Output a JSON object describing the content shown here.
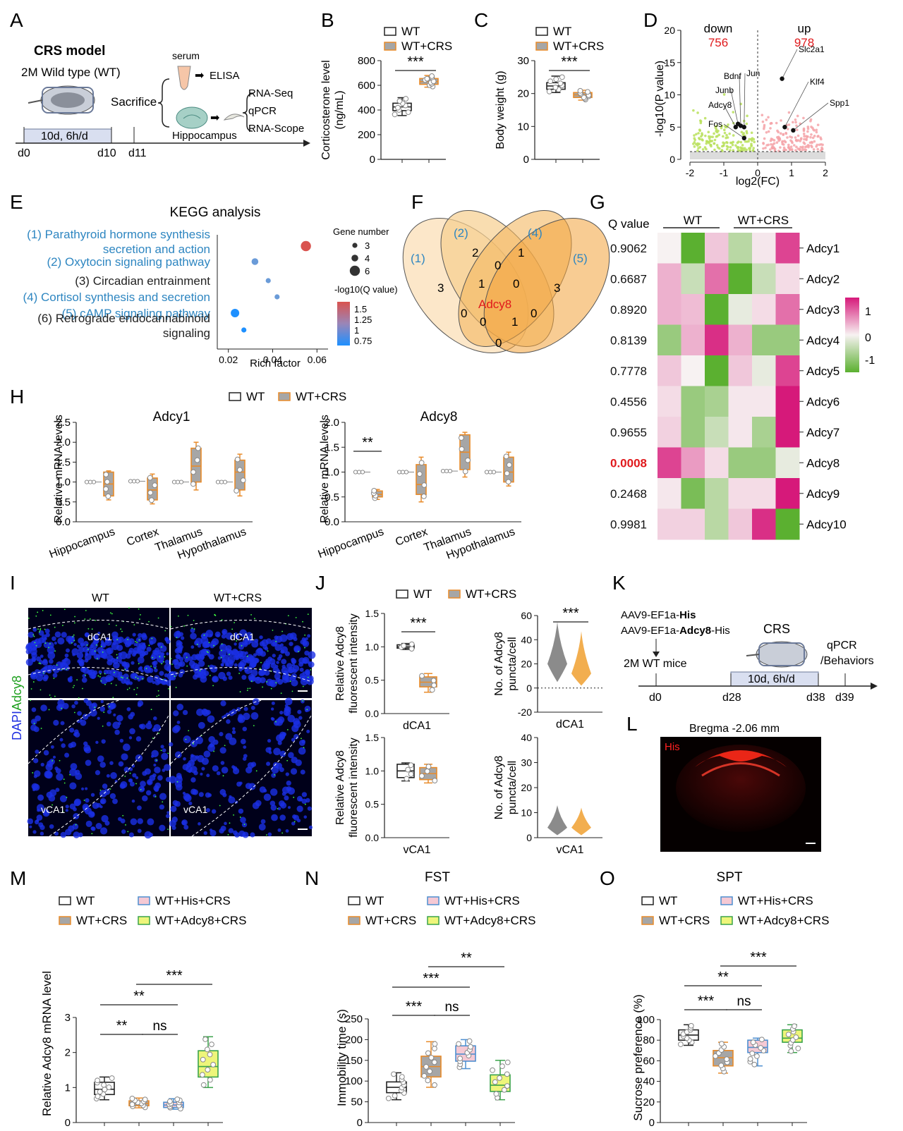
{
  "colors": {
    "wt": "#ffffff",
    "crs": "#a6a6a6",
    "crs_edge": "#e88b2a",
    "his": "#f5c9d4",
    "his_edge": "#4e8fd0",
    "adcy8": "#eef57a",
    "adcy8_edge": "#3aa34a",
    "up": "#f4a3a8",
    "down": "#b8e05a",
    "sig": "#e0191c",
    "blue_text": "#2e86c1",
    "hm_high": "#d6197a",
    "hm_mid": "#f7f2f2",
    "hm_low": "#5bb030",
    "orange": "#f0a030",
    "venn": "#fbe3bf"
  },
  "panel_letters": [
    "A",
    "B",
    "C",
    "D",
    "E",
    "F",
    "G",
    "H",
    "I",
    "J",
    "K",
    "L",
    "M",
    "N",
    "O"
  ],
  "A": {
    "title": "CRS model",
    "sub": "2M Wild type (WT)",
    "sacrifice": "Sacrifice",
    "serum": "serum",
    "elisa": "ELISA",
    "hippocampus": "Hippocampus",
    "assays": [
      "RNA-Seq",
      "qPCR",
      "RNA-Scope"
    ],
    "period": "10d, 6h/d",
    "days": [
      "d0",
      "d10",
      "d11"
    ]
  },
  "B": {
    "chart_data": {
      "type": "box",
      "ylabel": "Corticosterone level",
      "ylabel2": "(ng/mL)",
      "ylim": [
        0,
        800
      ],
      "ticks": [
        "0",
        "200",
        "400",
        "600",
        "800"
      ],
      "legend": [
        "WT",
        "WT+CRS"
      ],
      "sig": "***",
      "groups": [
        {
          "name": "WT",
          "median": 425,
          "q1": 395,
          "q3": 455,
          "min": 355,
          "max": 500
        },
        {
          "name": "WT+CRS",
          "median": 630,
          "q1": 608,
          "q3": 655,
          "min": 585,
          "max": 680
        }
      ]
    }
  },
  "C": {
    "chart_data": {
      "type": "box",
      "ylabel": "Body weight (g)",
      "ylim": [
        0,
        30
      ],
      "ticks": [
        "0",
        "10",
        "20",
        "30"
      ],
      "legend": [
        "WT",
        "WT+CRS"
      ],
      "sig": "***",
      "groups": [
        {
          "name": "WT",
          "median": 22.3,
          "q1": 21.3,
          "q3": 23.3,
          "min": 20.3,
          "max": 25.3
        },
        {
          "name": "WT+CRS",
          "median": 19.6,
          "q1": 18.8,
          "q3": 20.3,
          "min": 18.0,
          "max": 21.0
        }
      ]
    }
  },
  "D": {
    "chart_data": {
      "type": "scatter",
      "xlabel": "log2(FC)",
      "ylabel": "-log10(P value)",
      "xlim": [
        -2,
        2
      ],
      "ylim": [
        0,
        20
      ],
      "xticks": [
        "-2",
        "-1",
        "0",
        "1",
        "2"
      ],
      "yticks": [
        "0",
        "5",
        "10",
        "15",
        "20"
      ],
      "down_label": "down",
      "down_count": "756",
      "up_label": "up",
      "up_count": "978",
      "genes": [
        {
          "name": "Slc2a1",
          "x": 0.72,
          "y": 12.5
        },
        {
          "name": "Klf4",
          "x": 0.8,
          "y": 5.0
        },
        {
          "name": "Spp1",
          "x": 1.05,
          "y": 4.5
        },
        {
          "name": "Jun",
          "x": -0.4,
          "y": 5.0
        },
        {
          "name": "Bdnf",
          "x": -0.5,
          "y": 5.2
        },
        {
          "name": "Junb",
          "x": -0.58,
          "y": 5.5
        },
        {
          "name": "Adcy8",
          "x": -0.65,
          "y": 5.0
        },
        {
          "name": "Fos",
          "x": -0.4,
          "y": 3.3
        }
      ]
    }
  },
  "E": {
    "title": "KEGG analysis",
    "xlabel": "Rich factor",
    "xticks": [
      "0.02",
      "0.04",
      "0.06"
    ],
    "size_legend_title": "Gene number",
    "size_legend": [
      "3",
      "4",
      "6"
    ],
    "color_legend_title": "-log10(Q value)",
    "color_legend": [
      "1.5",
      "1.25",
      "1",
      "0.75"
    ],
    "chart_data": {
      "type": "scatter",
      "xlim": [
        0.015,
        0.065
      ],
      "pathways": [
        {
          "label": "(1) Parathyroid hormone synthesis",
          "label2": "secretion and action",
          "rich": 0.055,
          "genes": 6,
          "q": 1.5,
          "highlight": true
        },
        {
          "label": "(2) Oxytocin signaling pathway",
          "rich": 0.032,
          "genes": 4,
          "q": 1.05,
          "highlight": true
        },
        {
          "label": "(3) Circadian entrainment",
          "rich": 0.038,
          "genes": 3,
          "q": 1.0,
          "highlight": false
        },
        {
          "label": "(4) Cortisol synthesis and secretion",
          "rich": 0.042,
          "genes": 3,
          "q": 0.95,
          "highlight": true
        },
        {
          "label": "(5) cAMP signaling pathway",
          "rich": 0.023,
          "genes": 5,
          "q": 0.75,
          "highlight": true
        },
        {
          "label": "(6) Retrograde endocannabinoid",
          "label2": "signaling",
          "rich": 0.027,
          "genes": 3,
          "q": 0.8,
          "highlight": false
        }
      ]
    }
  },
  "F": {
    "set_labels": [
      "(1)",
      "(2)",
      "(4)",
      "(5)"
    ],
    "counts": [
      "3",
      "2",
      "1",
      "3",
      "0",
      "1",
      "0",
      "0",
      "0",
      "1",
      "0",
      "0"
    ],
    "center": "Adcy8"
  },
  "G": {
    "col_groups": [
      "WT",
      "WT+CRS"
    ],
    "q_header": "Q value",
    "scale": [
      "1",
      "0",
      "-1"
    ],
    "chart_data": {
      "type": "heatmap",
      "rows": [
        {
          "gene": "Adcy1",
          "q": "0.9062",
          "values": [
            0.0,
            -1.0,
            0.2,
            -0.4,
            0.05,
            0.8
          ]
        },
        {
          "gene": "Adcy2",
          "q": "0.6687",
          "values": [
            0.3,
            -0.3,
            0.6,
            -1.0,
            -0.3,
            0.1
          ]
        },
        {
          "gene": "Adcy3",
          "q": "0.8920",
          "values": [
            0.3,
            0.25,
            -1.0,
            -0.1,
            0.1,
            0.6
          ]
        },
        {
          "gene": "Adcy4",
          "q": "0.8139",
          "values": [
            -0.6,
            0.3,
            0.9,
            0.3,
            -0.6,
            -0.6
          ]
        },
        {
          "gene": "Adcy5",
          "q": "0.7778",
          "values": [
            0.2,
            0.0,
            -1.0,
            0.2,
            -0.1,
            0.8
          ]
        },
        {
          "gene": "Adcy6",
          "q": "0.4556",
          "values": [
            0.1,
            -0.6,
            -0.5,
            0.05,
            0.05,
            1.0
          ]
        },
        {
          "gene": "Adcy7",
          "q": "0.9655",
          "values": [
            0.15,
            -0.6,
            -0.3,
            0.05,
            -0.5,
            1.0
          ]
        },
        {
          "gene": "Adcy8",
          "q": "0.0008",
          "values": [
            0.8,
            0.4,
            0.1,
            -0.6,
            -0.6,
            -0.1
          ],
          "significant": true
        },
        {
          "gene": "Adcy9",
          "q": "0.2468",
          "values": [
            0.05,
            -0.8,
            -0.4,
            0.1,
            0.1,
            1.0
          ]
        },
        {
          "gene": "Adcy10",
          "q": "0.9981",
          "values": [
            0.15,
            0.15,
            -0.4,
            0.2,
            0.9,
            -1.0
          ]
        }
      ]
    }
  },
  "H": {
    "legend": [
      "WT",
      "WT+CRS"
    ],
    "ylabel": "Relative mRNA levels",
    "ticks": [
      "0.0",
      "0.5",
      "1.0",
      "1.5",
      "2.0",
      "2.5"
    ],
    "chart_data": [
      {
        "type": "box",
        "title": "Adcy1",
        "ylim": [
          0,
          2.5
        ],
        "categories": [
          "Hippocampus",
          "Cortex",
          "Thalamus",
          "Hypothalamus"
        ],
        "wt": [
          1.0,
          1.02,
          1.0,
          1.0
        ],
        "crs": [
          {
            "median": 0.95,
            "q1": 0.65,
            "q3": 1.25,
            "min": 0.55,
            "max": 1.28
          },
          {
            "median": 0.8,
            "q1": 0.55,
            "q3": 1.1,
            "min": 0.45,
            "max": 1.2
          },
          {
            "median": 1.4,
            "q1": 1.0,
            "q3": 1.85,
            "min": 0.8,
            "max": 2.0
          },
          {
            "median": 1.25,
            "q1": 0.8,
            "q3": 1.55,
            "min": 0.65,
            "max": 1.7
          }
        ]
      },
      {
        "type": "box",
        "title": "Adcy8",
        "ylim": [
          0,
          2.0
        ],
        "sig": "**",
        "categories": [
          "Hippocampus",
          "Cortex",
          "Thalamus",
          "Hypothalamus"
        ],
        "wt": [
          1.0,
          1.0,
          1.02,
          1.0
        ],
        "crs": [
          {
            "median": 0.55,
            "q1": 0.5,
            "q3": 0.62,
            "min": 0.45,
            "max": 0.65
          },
          {
            "median": 0.75,
            "q1": 0.55,
            "q3": 1.15,
            "min": 0.4,
            "max": 1.3
          },
          {
            "median": 1.4,
            "q1": 1.05,
            "q3": 1.75,
            "min": 0.9,
            "max": 1.8
          },
          {
            "median": 1.0,
            "q1": 0.8,
            "q3": 1.3,
            "min": 0.72,
            "max": 1.4
          }
        ]
      }
    ]
  },
  "I": {
    "col_labels": [
      "WT",
      "WT+CRS"
    ],
    "regions": [
      "dCA1",
      "dCA1",
      "vCA1",
      "vCA1"
    ],
    "stain_a": "DAPI",
    "stain_b": "Adcy8"
  },
  "J": {
    "legend": [
      "WT",
      "WT+CRS"
    ],
    "chart_data": [
      {
        "type": "box",
        "region": "dCA1",
        "ylabel": "Relative Adcy8",
        "ylabel2": "fluorescent intensity",
        "ylim": [
          0,
          1.5
        ],
        "ticks": [
          "0.0",
          "0.5",
          "1.0",
          "1.5"
        ],
        "sig": "***",
        "groups": [
          {
            "median": 1.0,
            "q1": 0.98,
            "q3": 1.03,
            "min": 0.96,
            "max": 1.05
          },
          {
            "median": 0.47,
            "q1": 0.4,
            "q3": 0.55,
            "min": 0.32,
            "max": 0.6
          }
        ]
      },
      {
        "type": "violin",
        "region": "dCA1",
        "ylabel": "No. of Adcy8",
        "ylabel2": "puncta/cell",
        "ylim": [
          -20,
          60
        ],
        "ticks": [
          "-20",
          "0",
          "20",
          "40",
          "60"
        ],
        "sig": "***"
      },
      {
        "type": "box",
        "region": "vCA1",
        "ylabel": "Relative Adcy8",
        "ylabel2": "fluorescent intensity",
        "ylim": [
          0,
          1.5
        ],
        "ticks": [
          "0.0",
          "0.5",
          "1.0",
          "1.5"
        ],
        "groups": [
          {
            "median": 1.0,
            "q1": 0.9,
            "q3": 1.1,
            "min": 0.85,
            "max": 1.12
          },
          {
            "median": 0.96,
            "q1": 0.87,
            "q3": 1.05,
            "min": 0.82,
            "max": 1.1
          }
        ]
      },
      {
        "type": "violin",
        "region": "vCA1",
        "ylabel": "No. of Adcy8",
        "ylabel2": "puncta/cell",
        "ylim": [
          0,
          40
        ],
        "ticks": [
          "0",
          "10",
          "20",
          "30",
          "40"
        ]
      }
    ]
  },
  "K": {
    "virus1_pre": "AAV9-EF1a-",
    "virus1_bold": "His",
    "virus2_pre": "AAV9-EF1a-",
    "virus2_bold": "Adcy8",
    "virus2_post": "-His",
    "mice": "2M WT mice",
    "crs": "CRS",
    "period": "10d, 6h/d",
    "outcome": "qPCR",
    "outcome2": "/Behaviors",
    "days": [
      "d0",
      "d28",
      "d38",
      "d39"
    ]
  },
  "L": {
    "title": "Bregma -2.06 mm",
    "stain": "His"
  },
  "M": {
    "legend": [
      "WT",
      "WT+His+CRS",
      "WT+CRS",
      "WT+Adcy8+CRS"
    ],
    "chart_data": {
      "type": "box",
      "ylabel": "Relative Adcy8 mRNA level",
      "ylim": [
        0,
        3
      ],
      "ticks": [
        "0",
        "1",
        "2",
        "3"
      ],
      "sig": [
        [
          "**",
          "1-2"
        ],
        [
          "ns",
          "2-3"
        ],
        [
          "**",
          "1-3"
        ],
        [
          "***",
          "2-4"
        ]
      ],
      "groups": [
        {
          "median": 0.95,
          "q1": 0.8,
          "q3": 1.15,
          "min": 0.65,
          "max": 1.3
        },
        {
          "median": 0.55,
          "q1": 0.48,
          "q3": 0.62,
          "min": 0.42,
          "max": 0.7
        },
        {
          "median": 0.5,
          "q1": 0.43,
          "q3": 0.58,
          "min": 0.38,
          "max": 0.68
        },
        {
          "median": 1.6,
          "q1": 1.3,
          "q3": 2.05,
          "min": 1.0,
          "max": 2.45
        }
      ]
    }
  },
  "N": {
    "title": "FST",
    "legend": [
      "WT",
      "WT+His+CRS",
      "WT+CRS",
      "WT+Adcy8+CRS"
    ],
    "chart_data": {
      "type": "box",
      "ylabel": "Immobility time (s)",
      "ylim": [
        0,
        250
      ],
      "ticks": [
        "0",
        "50",
        "100",
        "150",
        "200",
        "250"
      ],
      "sig": [
        [
          "***",
          "1-2"
        ],
        [
          "ns",
          "2-3"
        ],
        [
          "***",
          "1-3"
        ],
        [
          "**",
          "2-4"
        ]
      ],
      "groups": [
        {
          "median": 85,
          "q1": 72,
          "q3": 98,
          "min": 55,
          "max": 120
        },
        {
          "median": 135,
          "q1": 110,
          "q3": 160,
          "min": 85,
          "max": 195
        },
        {
          "median": 165,
          "q1": 148,
          "q3": 185,
          "min": 130,
          "max": 200
        },
        {
          "median": 90,
          "q1": 75,
          "q3": 115,
          "min": 55,
          "max": 150
        }
      ]
    }
  },
  "O": {
    "title": "SPT",
    "legend": [
      "WT",
      "WT+His+CRS",
      "WT+CRS",
      "WT+Adcy8+CRS"
    ],
    "chart_data": {
      "type": "box",
      "ylabel": "Sucrose preference (%)",
      "ylim": [
        0,
        100
      ],
      "ticks": [
        "0",
        "20",
        "40",
        "60",
        "80",
        "100"
      ],
      "sig": [
        [
          "***",
          "1-2"
        ],
        [
          "ns",
          "2-3"
        ],
        [
          "**",
          "1-3"
        ],
        [
          "***",
          "2-4"
        ]
      ],
      "groups": [
        {
          "median": 85,
          "q1": 80,
          "q3": 90,
          "min": 75,
          "max": 95
        },
        {
          "median": 63,
          "q1": 55,
          "q3": 70,
          "min": 48,
          "max": 78
        },
        {
          "median": 73,
          "q1": 68,
          "q3": 80,
          "min": 55,
          "max": 82
        },
        {
          "median": 82,
          "q1": 78,
          "q3": 90,
          "min": 68,
          "max": 95
        }
      ]
    }
  }
}
